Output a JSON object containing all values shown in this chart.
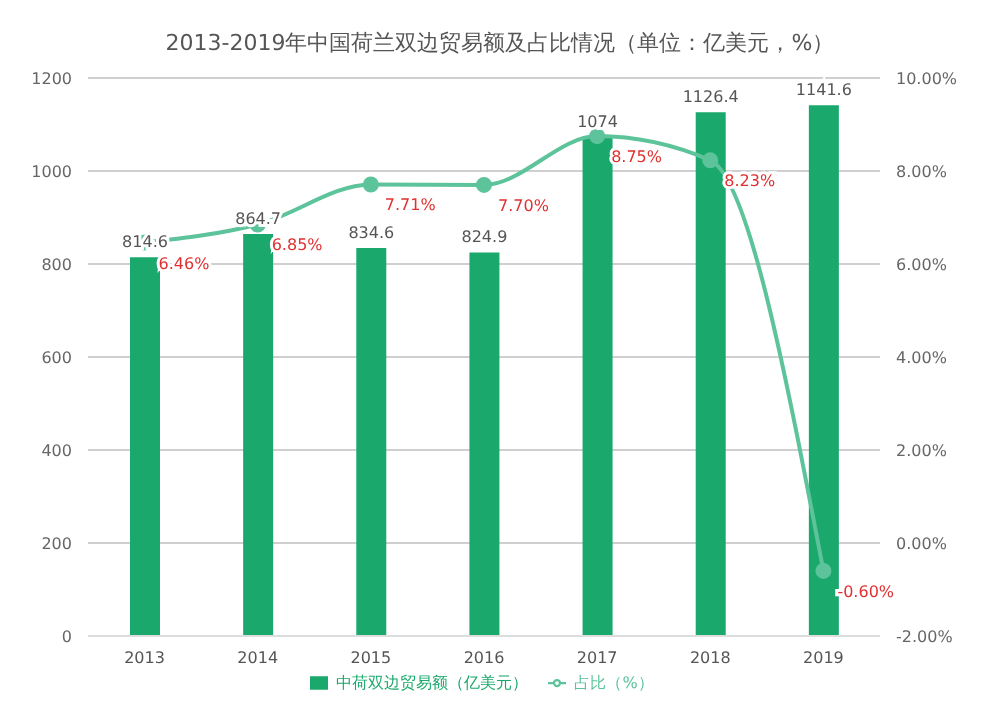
{
  "chart_data": {
    "type": "bar",
    "title": "2013-2019年中国荷兰双边贸易额及占比情况（单位：亿美元，%）",
    "categories": [
      "2013",
      "2014",
      "2015",
      "2016",
      "2017",
      "2018",
      "2019"
    ],
    "series": [
      {
        "name": "中荷双边贸易额（亿美元）",
        "color": "#1aa86c",
        "values": [
          814.6,
          864.7,
          834.6,
          824.9,
          1074,
          1126.4,
          1141.6
        ],
        "value_labels": [
          "814.6",
          "864.7",
          "834.6",
          "824.9",
          "1074",
          "1126.4",
          "1141.6"
        ]
      },
      {
        "name": "占比（%）",
        "type": "line",
        "axis": "y2",
        "color": "#5cc39a",
        "values": [
          6.46,
          6.85,
          7.71,
          7.7,
          8.75,
          8.23,
          -0.6
        ],
        "value_labels": [
          "6.46%",
          "6.85%",
          "7.71%",
          "7.70%",
          "8.75%",
          "8.23%",
          "-0.60%"
        ]
      }
    ],
    "ylim": [
      0,
      1200
    ],
    "yticks": [
      0,
      200,
      400,
      600,
      800,
      1000,
      1200
    ],
    "y2lim": [
      -2,
      10
    ],
    "y2ticks": [
      {
        "value": -2,
        "label": "-2.00%"
      },
      {
        "value": 0,
        "label": "0.00%"
      },
      {
        "value": 2,
        "label": "2.00%"
      },
      {
        "value": 4,
        "label": "4.00%"
      },
      {
        "value": 6,
        "label": "6.00%"
      },
      {
        "value": 8,
        "label": "8.00%"
      },
      {
        "value": 10,
        "label": "10.00%"
      }
    ],
    "grid": "y",
    "legend": "bottom",
    "marker": "circle",
    "line_style": "solid"
  }
}
